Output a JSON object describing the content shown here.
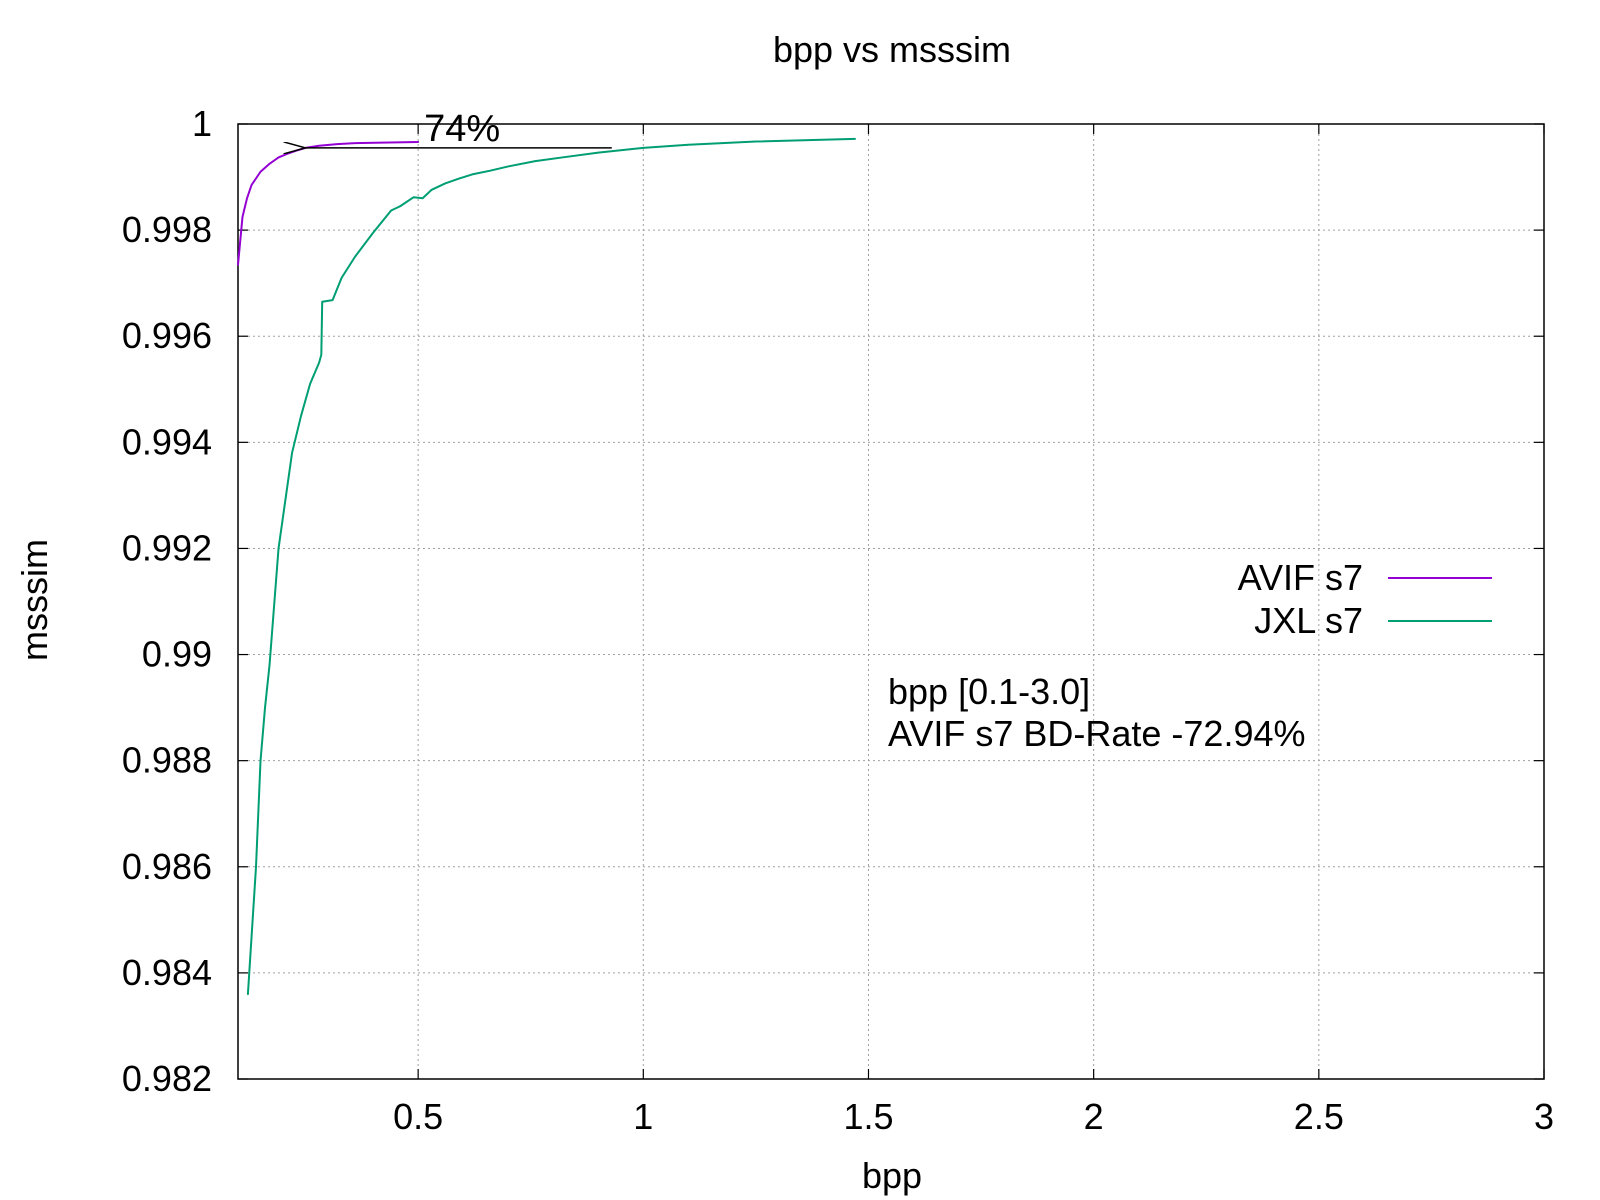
{
  "chart_data": {
    "type": "line",
    "title": "bpp vs msssim",
    "xlabel": "bpp",
    "ylabel": "msssim",
    "xlim": [
      0.1,
      3.0
    ],
    "ylim": [
      0.982,
      1.0
    ],
    "x_ticks": [
      0.5,
      1,
      1.5,
      2,
      2.5,
      3
    ],
    "x_tick_labels": [
      "0.5",
      "1",
      "1.5",
      "2",
      "2.5",
      "3"
    ],
    "y_ticks": [
      0.982,
      0.984,
      0.986,
      0.988,
      0.99,
      0.992,
      0.994,
      0.996,
      0.998,
      1.0
    ],
    "y_tick_labels": [
      "0.982",
      "0.984",
      "0.986",
      "0.988",
      "0.99",
      "0.992",
      "0.994",
      "0.996",
      "0.998",
      "1"
    ],
    "grid": true,
    "legend_position": "right",
    "series": [
      {
        "name": "AVIF s7",
        "color": "#9400d3",
        "points": [
          [
            0.1,
            0.99735
          ],
          [
            0.11,
            0.99825
          ],
          [
            0.12,
            0.9986
          ],
          [
            0.13,
            0.99885
          ],
          [
            0.15,
            0.9991
          ],
          [
            0.17,
            0.99925
          ],
          [
            0.19,
            0.99937
          ],
          [
            0.21,
            0.99944
          ],
          [
            0.23,
            0.9995
          ],
          [
            0.25,
            0.99955
          ],
          [
            0.28,
            0.99959
          ],
          [
            0.32,
            0.99962
          ],
          [
            0.36,
            0.99964
          ],
          [
            0.42,
            0.99965
          ],
          [
            0.5,
            0.99966
          ]
        ]
      },
      {
        "name": "JXL s7",
        "color": "#009e73",
        "points": [
          [
            0.122,
            0.9836
          ],
          [
            0.14,
            0.986
          ],
          [
            0.15,
            0.988
          ],
          [
            0.16,
            0.989
          ],
          [
            0.17,
            0.9898
          ],
          [
            0.19,
            0.992
          ],
          [
            0.21,
            0.9932
          ],
          [
            0.22,
            0.9938
          ],
          [
            0.24,
            0.9945
          ],
          [
            0.26,
            0.9951
          ],
          [
            0.28,
            0.9955
          ],
          [
            0.285,
            0.99565
          ],
          [
            0.287,
            0.99665
          ],
          [
            0.31,
            0.99668
          ],
          [
            0.33,
            0.9971
          ],
          [
            0.36,
            0.9975
          ],
          [
            0.4,
            0.99795
          ],
          [
            0.44,
            0.99837
          ],
          [
            0.46,
            0.99845
          ],
          [
            0.49,
            0.99862
          ],
          [
            0.51,
            0.9986
          ],
          [
            0.53,
            0.99876
          ],
          [
            0.56,
            0.99888
          ],
          [
            0.59,
            0.99897
          ],
          [
            0.62,
            0.99905
          ],
          [
            0.66,
            0.99912
          ],
          [
            0.7,
            0.9992
          ],
          [
            0.76,
            0.9993
          ],
          [
            0.82,
            0.99937
          ],
          [
            0.9,
            0.99946
          ],
          [
            1.0,
            0.99955
          ],
          [
            1.1,
            0.99961
          ],
          [
            1.25,
            0.99967
          ],
          [
            1.47,
            0.99972
          ]
        ]
      }
    ],
    "annotations": [
      {
        "text": "74%",
        "type": "arrow",
        "from": [
          0.93,
          0.99955
        ],
        "to": [
          0.25,
          0.99955
        ],
        "label_at": [
          0.5,
          0.99966
        ],
        "color": "#000000"
      },
      {
        "text": "bpp [0.1-3.0]",
        "color": "#00ff00"
      },
      {
        "text": "AVIF s7 BD-Rate -72.94%",
        "color": "#00ff00"
      }
    ]
  }
}
